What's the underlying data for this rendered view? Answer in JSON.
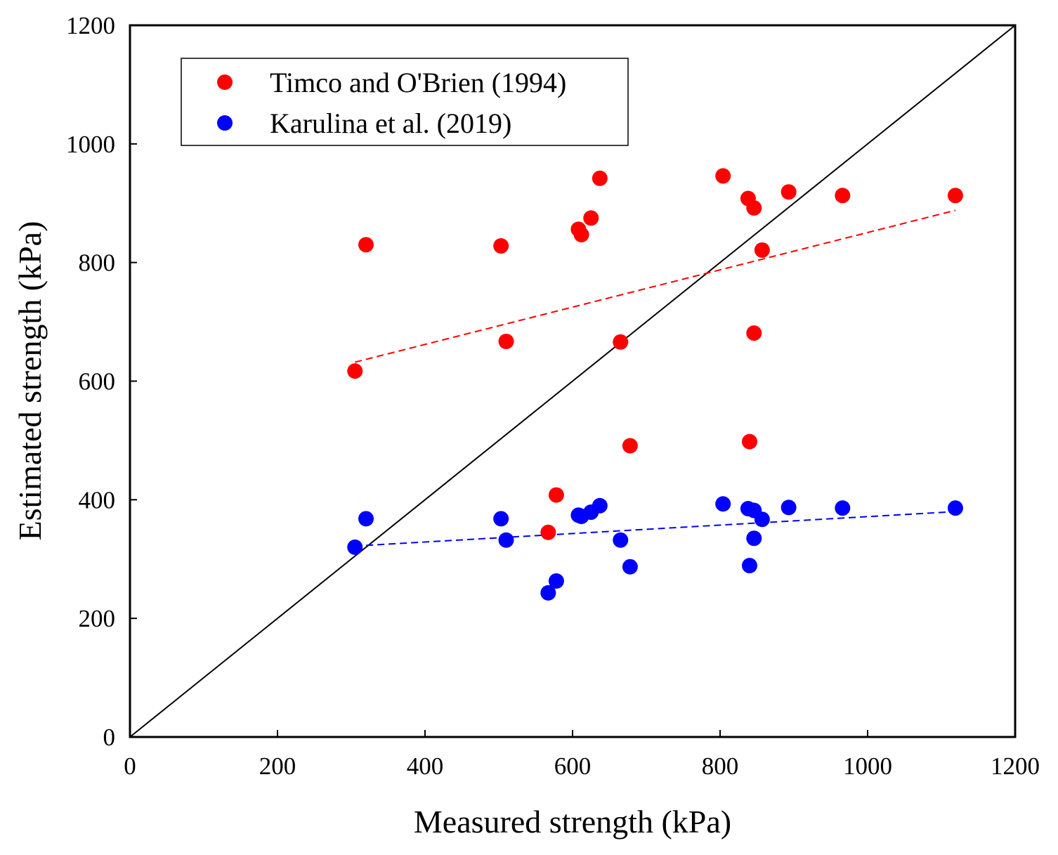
{
  "chart_data": {
    "type": "scatter",
    "title": "",
    "xlabel": "Measured strength (kPa)",
    "ylabel": "Estimated strength (kPa)",
    "xlim": [
      0,
      1200
    ],
    "ylim": [
      0,
      1200
    ],
    "xticks": [
      0,
      200,
      400,
      600,
      800,
      1000,
      1200
    ],
    "yticks": [
      0,
      200,
      400,
      600,
      800,
      1000,
      1200
    ],
    "grid": false,
    "legend_position": "top-left",
    "reference_line": {
      "name": "1:1 line",
      "color": "#000000",
      "points": [
        [
          0,
          0
        ],
        [
          1200,
          1200
        ]
      ]
    },
    "series": [
      {
        "name": "Timco and O'Brien (1994)",
        "color": "#ff0000",
        "points": [
          [
            305,
            617
          ],
          [
            320,
            830
          ],
          [
            503,
            828
          ],
          [
            510,
            667
          ],
          [
            567,
            345
          ],
          [
            578,
            408
          ],
          [
            608,
            856
          ],
          [
            612,
            847
          ],
          [
            625,
            875
          ],
          [
            637,
            942
          ],
          [
            665,
            666
          ],
          [
            678,
            491
          ],
          [
            804,
            946
          ],
          [
            838,
            908
          ],
          [
            840,
            498
          ],
          [
            846,
            892
          ],
          [
            846,
            681
          ],
          [
            857,
            821
          ],
          [
            893,
            919
          ],
          [
            966,
            913
          ],
          [
            1119,
            913
          ]
        ],
        "trend": {
          "color": "#ff0000",
          "dashed": true,
          "start": [
            305,
            632
          ],
          "end": [
            1119,
            888
          ]
        }
      },
      {
        "name": "Karulina et al. (2019)",
        "color": "#0000ff",
        "points": [
          [
            305,
            320
          ],
          [
            320,
            368
          ],
          [
            503,
            368
          ],
          [
            510,
            332
          ],
          [
            567,
            243
          ],
          [
            578,
            263
          ],
          [
            608,
            374
          ],
          [
            612,
            372
          ],
          [
            625,
            379
          ],
          [
            637,
            390
          ],
          [
            665,
            332
          ],
          [
            678,
            287
          ],
          [
            804,
            393
          ],
          [
            838,
            385
          ],
          [
            840,
            289
          ],
          [
            846,
            382
          ],
          [
            846,
            335
          ],
          [
            857,
            367
          ],
          [
            893,
            387
          ],
          [
            966,
            386
          ],
          [
            1119,
            386
          ]
        ],
        "trend": {
          "color": "#0000ff",
          "dashed": true,
          "start": [
            305,
            322
          ],
          "end": [
            1119,
            380
          ]
        }
      }
    ]
  }
}
